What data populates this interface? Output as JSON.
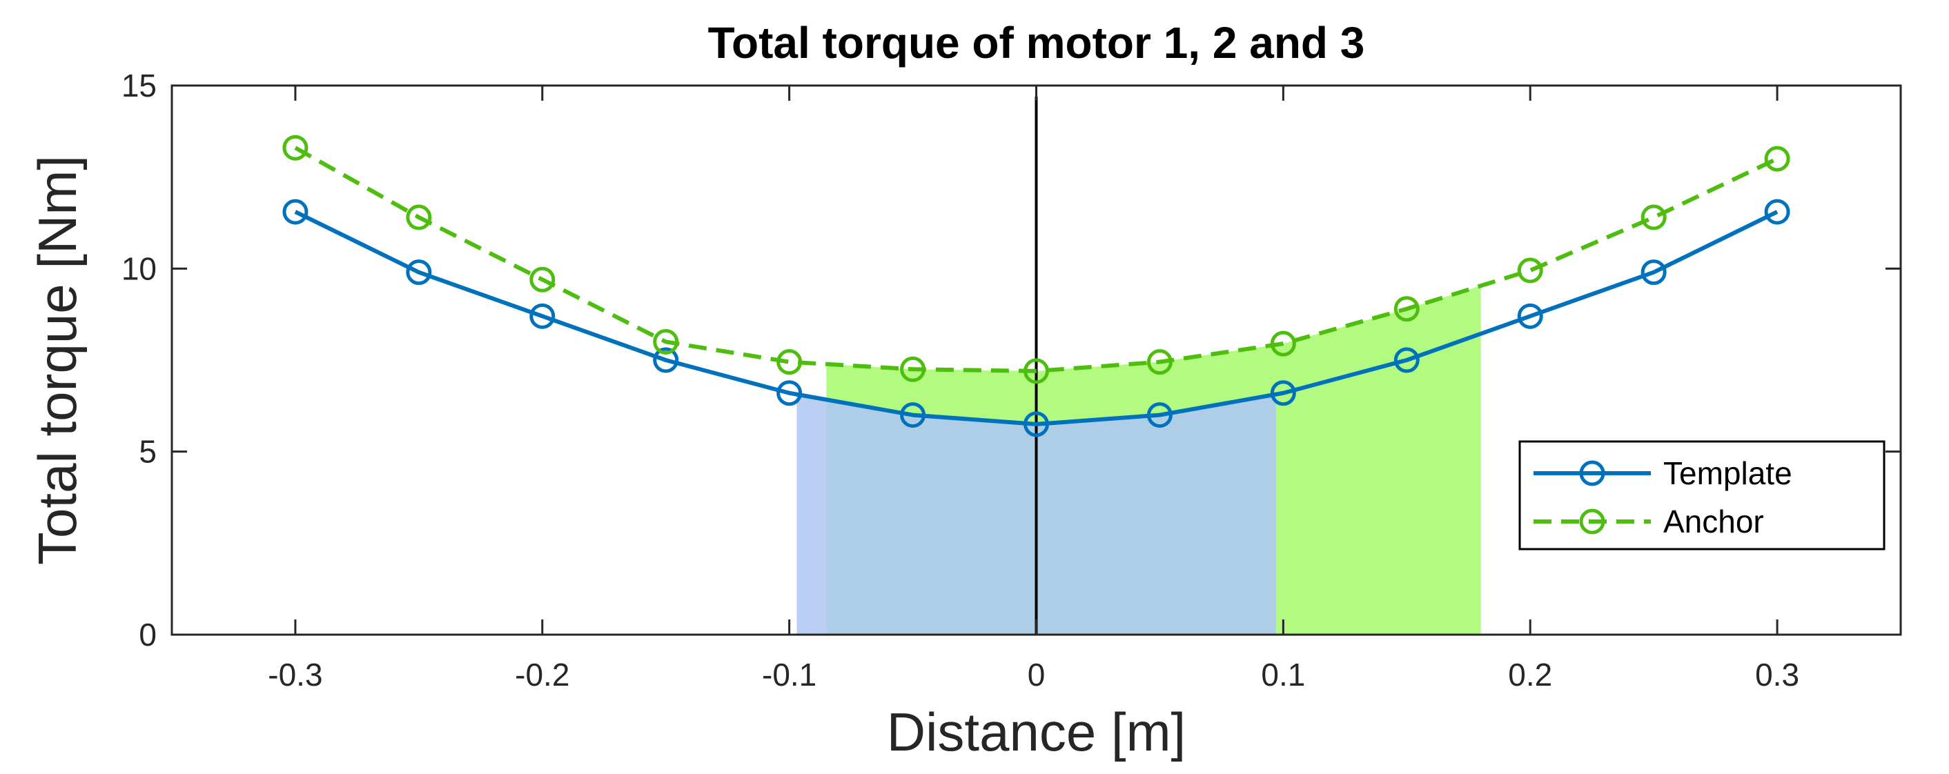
{
  "chart_data": {
    "type": "line",
    "title": "Total torque of motor 1, 2 and 3",
    "xlabel": "Distance [m]",
    "ylabel": "Total torque [Nm]",
    "xlim": [
      -0.35,
      0.35
    ],
    "ylim": [
      0,
      15
    ],
    "xticks": [
      -0.3,
      -0.2,
      -0.1,
      0,
      0.1,
      0.2,
      0.3
    ],
    "xtick_labels": [
      "-0.3",
      "-0.2",
      "-0.1",
      "0",
      "0.1",
      "0.2",
      "0.3"
    ],
    "yticks": [
      0,
      5,
      10,
      15
    ],
    "ytick_labels": [
      "0",
      "5",
      "10",
      "15"
    ],
    "grid": false,
    "legend_position": "lower-right",
    "x": [
      -0.3,
      -0.25,
      -0.2,
      -0.15,
      -0.1,
      -0.05,
      0,
      0.05,
      0.1,
      0.15,
      0.2,
      0.25,
      0.3
    ],
    "series": [
      {
        "name": "Template",
        "color": "#0072BD",
        "line_style": "solid",
        "marker": "circle",
        "values": [
          11.55,
          9.9,
          8.7,
          7.5,
          6.6,
          6.0,
          5.75,
          6.0,
          6.6,
          7.5,
          8.7,
          9.9,
          11.55
        ]
      },
      {
        "name": "Anchor",
        "color": "#4DBE0E",
        "line_style": "dashed",
        "marker": "circle",
        "values": [
          13.3,
          11.4,
          9.7,
          8.0,
          7.45,
          7.25,
          7.2,
          7.45,
          7.95,
          8.9,
          9.95,
          11.4,
          13.0
        ]
      }
    ],
    "shaded_regions": [
      {
        "series": "Template",
        "x_start": -0.097,
        "x_end": 0.097,
        "color": "#AECDE6",
        "edge_color": "#BBCFF5"
      },
      {
        "series": "Anchor",
        "x_start": -0.085,
        "x_end": 0.18,
        "color": "#B3FB80"
      }
    ],
    "reference_line": {
      "x": 0,
      "color": "#000000"
    }
  }
}
